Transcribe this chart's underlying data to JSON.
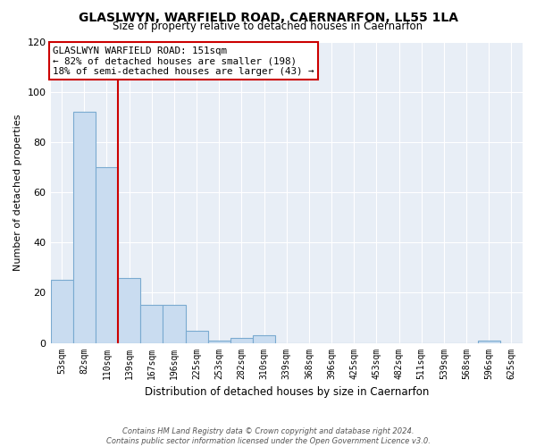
{
  "title": "GLASLWYN, WARFIELD ROAD, CAERNARFON, LL55 1LA",
  "subtitle": "Size of property relative to detached houses in Caernarfon",
  "xlabel": "Distribution of detached houses by size in Caernarfon",
  "ylabel": "Number of detached properties",
  "bar_labels": [
    "53sqm",
    "82sqm",
    "110sqm",
    "139sqm",
    "167sqm",
    "196sqm",
    "225sqm",
    "253sqm",
    "282sqm",
    "310sqm",
    "339sqm",
    "368sqm",
    "396sqm",
    "425sqm",
    "453sqm",
    "482sqm",
    "511sqm",
    "539sqm",
    "568sqm",
    "596sqm",
    "625sqm"
  ],
  "bar_values": [
    25,
    92,
    70,
    26,
    15,
    15,
    5,
    1,
    2,
    3,
    0,
    0,
    0,
    0,
    0,
    0,
    0,
    0,
    0,
    1,
    0
  ],
  "bar_color": "#c9dcf0",
  "bar_edge_color": "#7aaad0",
  "vline_x_index": 3,
  "vline_color": "#cc0000",
  "annotation_title": "GLASLWYN WARFIELD ROAD: 151sqm",
  "annotation_line1": "← 82% of detached houses are smaller (198)",
  "annotation_line2": "18% of semi-detached houses are larger (43) →",
  "annotation_box_color": "#ffffff",
  "annotation_box_edge": "#cc0000",
  "ylim": [
    0,
    120
  ],
  "yticks": [
    0,
    20,
    40,
    60,
    80,
    100,
    120
  ],
  "footer1": "Contains HM Land Registry data © Crown copyright and database right 2024.",
  "footer2": "Contains public sector information licensed under the Open Government Licence v3.0.",
  "bg_color": "#ffffff",
  "plot_bg_color": "#e8eef6",
  "grid_color": "#ffffff"
}
